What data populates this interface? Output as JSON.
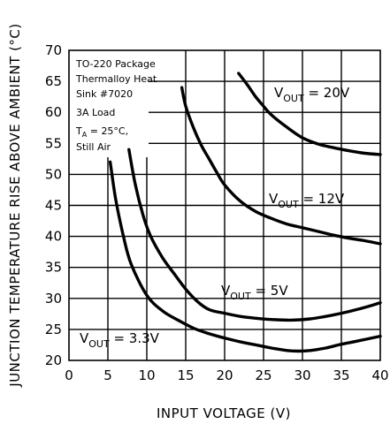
{
  "chart_data": {
    "type": "line",
    "title": "",
    "xlabel": "INPUT VOLTAGE (V)",
    "ylabel": "JUNCTION TEMPERATURE RISE ABOVE AMBIENT (°C)",
    "xlim": [
      0,
      40
    ],
    "ylim": [
      20,
      70
    ],
    "xticks": [
      "0",
      "5",
      "10",
      "15",
      "20",
      "25",
      "30",
      "35",
      "40"
    ],
    "yticks": [
      "20",
      "25",
      "30",
      "35",
      "40",
      "45",
      "50",
      "55",
      "60",
      "65",
      "70"
    ],
    "grid": true,
    "notes": [
      "TO-220 Package",
      "Thermalloy Heat",
      "Sink #7020",
      "3A Load",
      "25°C,",
      "Still Air"
    ],
    "ta_symbol": "T",
    "ta_sub": "A",
    "ta_eq": " = ",
    "series": [
      {
        "name": "V_OUT = 3.3V",
        "label_main": "V",
        "label_sub": "OUT",
        "label_value": " = 3.3V",
        "x": [
          5.3,
          6,
          7,
          8,
          10,
          12,
          14,
          16,
          18,
          20,
          22,
          24,
          26,
          28,
          29.5,
          31,
          33,
          35,
          37,
          40
        ],
        "y": [
          52,
          46,
          40,
          35.5,
          30.5,
          28,
          26.5,
          25.2,
          24.3,
          23.6,
          23,
          22.5,
          22,
          21.6,
          21.5,
          21.6,
          22,
          22.6,
          23.1,
          23.9
        ]
      },
      {
        "name": "V_OUT = 5V",
        "label_main": "V",
        "label_sub": "OUT",
        "label_value": " = 5V",
        "x": [
          7.7,
          8.5,
          9.5,
          10.5,
          12,
          13.5,
          15,
          16.5,
          18,
          20,
          22,
          24,
          26,
          28.5,
          31,
          33,
          35,
          37,
          39,
          40
        ],
        "y": [
          54,
          48.5,
          43.5,
          40,
          36.6,
          34,
          31.5,
          29.5,
          28.2,
          27.6,
          27.1,
          26.8,
          26.6,
          26.5,
          26.7,
          27.1,
          27.6,
          28.2,
          28.9,
          29.3
        ]
      },
      {
        "name": "V_OUT = 12V",
        "label_main": "V",
        "label_sub": "OUT",
        "label_value": " = 12V",
        "x": [
          14.5,
          15,
          16,
          17,
          18,
          19,
          20,
          22,
          24,
          26,
          28,
          30,
          32,
          34,
          36,
          38,
          40
        ],
        "y": [
          64,
          61,
          57.5,
          54.7,
          52.5,
          50.3,
          48.3,
          45.7,
          44,
          42.9,
          42,
          41.4,
          40.8,
          40.2,
          39.7,
          39.3,
          38.8
        ]
      },
      {
        "name": "V_OUT = 20V",
        "label_main": "V",
        "label_sub": "OUT",
        "label_value": " = 20V",
        "x": [
          21.8,
          23,
          24,
          25,
          26,
          28,
          30,
          32,
          34,
          36,
          38,
          40
        ],
        "y": [
          66.3,
          64.3,
          62.5,
          61,
          59.6,
          57.6,
          55.9,
          54.9,
          54.3,
          53.8,
          53.4,
          53.2
        ]
      }
    ]
  }
}
